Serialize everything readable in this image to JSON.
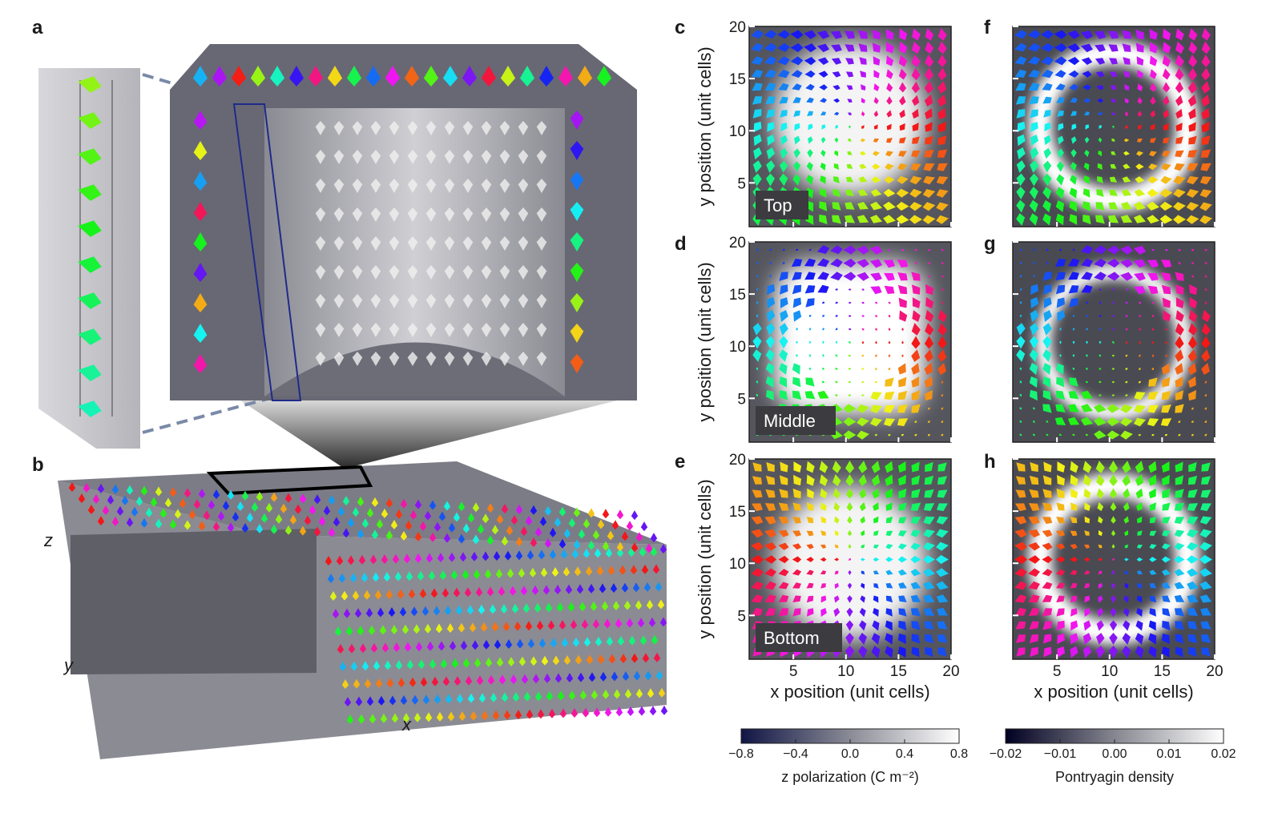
{
  "panel_labels": [
    "a",
    "b",
    "c",
    "d",
    "e",
    "f",
    "g",
    "h"
  ],
  "panel_b": {
    "axis_labels": {
      "z": "z",
      "y": "y",
      "x": "x"
    }
  },
  "maps": {
    "xlim": [
      0.8,
      20
    ],
    "ylim": [
      0.8,
      20
    ],
    "xticks": [
      5,
      10,
      15,
      20
    ],
    "yticks": [
      5,
      10,
      15,
      20
    ],
    "y_label": "y position (unit cells)",
    "x_label": "x position (unit cells)",
    "layers": [
      "Top",
      "Middle",
      "Bottom"
    ]
  },
  "colorbars": [
    {
      "label": "z polarization (C m⁻²)",
      "range": [
        -0.8,
        0.8
      ],
      "ticks": [
        {
          "value": -0.8,
          "label": "−0.8"
        },
        {
          "value": -0.4,
          "label": "−0.4"
        },
        {
          "value": 0,
          "label": "0.0"
        },
        {
          "value": 0.4,
          "label": "0.4"
        },
        {
          "value": 0.8,
          "label": "0.8"
        }
      ]
    },
    {
      "label": "Pontryagin density",
      "range": [
        -0.02,
        0.02
      ],
      "ticks": [
        {
          "value": -0.02,
          "label": "−0.02"
        },
        {
          "value": -0.01,
          "label": "−0.01"
        },
        {
          "value": 0,
          "label": "0.00"
        },
        {
          "value": 0.01,
          "label": "0.01"
        },
        {
          "value": 0.02,
          "label": "0.02"
        }
      ]
    }
  ]
}
